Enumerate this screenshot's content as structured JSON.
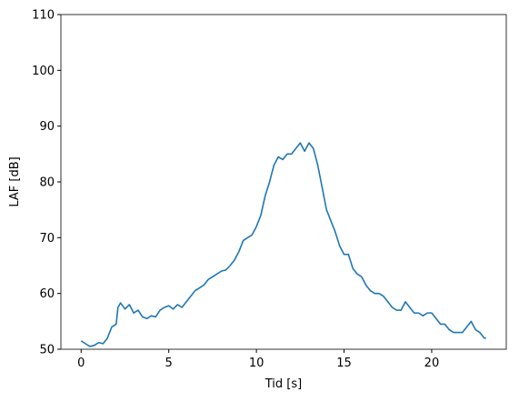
{
  "chart_data": {
    "type": "line",
    "xlabel": "Tid [s]",
    "ylabel": "LAF [dB]",
    "x": [
      0,
      0.25,
      0.5,
      0.75,
      1,
      1.25,
      1.5,
      1.75,
      2,
      2.1,
      2.25,
      2.5,
      2.75,
      3,
      3.25,
      3.5,
      3.75,
      4,
      4.25,
      4.5,
      4.75,
      5,
      5.25,
      5.5,
      5.75,
      6,
      6.25,
      6.5,
      6.75,
      7,
      7.25,
      7.5,
      7.75,
      8,
      8.25,
      8.5,
      8.75,
      9,
      9.25,
      9.5,
      9.75,
      10,
      10.25,
      10.5,
      10.75,
      11,
      11.25,
      11.5,
      11.75,
      12,
      12.25,
      12.5,
      12.75,
      13,
      13.25,
      13.5,
      13.75,
      14,
      14.25,
      14.5,
      14.75,
      15,
      15.25,
      15.5,
      15.75,
      16,
      16.25,
      16.5,
      16.75,
      17,
      17.25,
      17.5,
      17.75,
      18,
      18.25,
      18.5,
      18.75,
      19,
      19.25,
      19.5,
      19.75,
      20,
      20.25,
      20.5,
      20.75,
      21,
      21.25,
      21.5,
      21.75,
      22,
      22.25,
      22.5,
      22.75,
      23,
      23.1
    ],
    "series": [
      {
        "color": "#1f77b4",
        "values": [
          51.5,
          51.0,
          50.5,
          50.7,
          51.2,
          51.0,
          52.0,
          54.0,
          54.5,
          57.5,
          58.3,
          57.2,
          58.0,
          56.5,
          57.0,
          55.8,
          55.5,
          56.0,
          55.8,
          57.0,
          57.5,
          57.8,
          57.2,
          58.0,
          57.5,
          58.5,
          59.5,
          60.5,
          61.0,
          61.5,
          62.5,
          63.0,
          63.5,
          64.0,
          64.2,
          65.0,
          66.0,
          67.5,
          69.5,
          70.0,
          70.5,
          72.0,
          74.0,
          77.5,
          80.0,
          83.0,
          84.5,
          84.0,
          85.0,
          85.0,
          86.0,
          87.0,
          85.5,
          87.0,
          86.0,
          83.0,
          79.0,
          75.0,
          73.0,
          71.0,
          68.5,
          67.0,
          67.0,
          64.5,
          63.5,
          63.0,
          61.5,
          60.5,
          60.0,
          60.0,
          59.5,
          58.5,
          57.5,
          57.0,
          57.0,
          58.5,
          57.5,
          56.5,
          56.5,
          56.0,
          56.5,
          56.5,
          55.5,
          54.5,
          54.5,
          53.5,
          53.0,
          53.0,
          53.0,
          54.0,
          55.0,
          53.5,
          53.0,
          52.0,
          52.0
        ]
      }
    ],
    "xlim": [
      -1.155,
      24.255
    ],
    "xticks": [
      0,
      5,
      10,
      15,
      20
    ],
    "ylim": [
      50,
      110
    ],
    "yticks": [
      50,
      60,
      70,
      80,
      90,
      100,
      110
    ]
  }
}
